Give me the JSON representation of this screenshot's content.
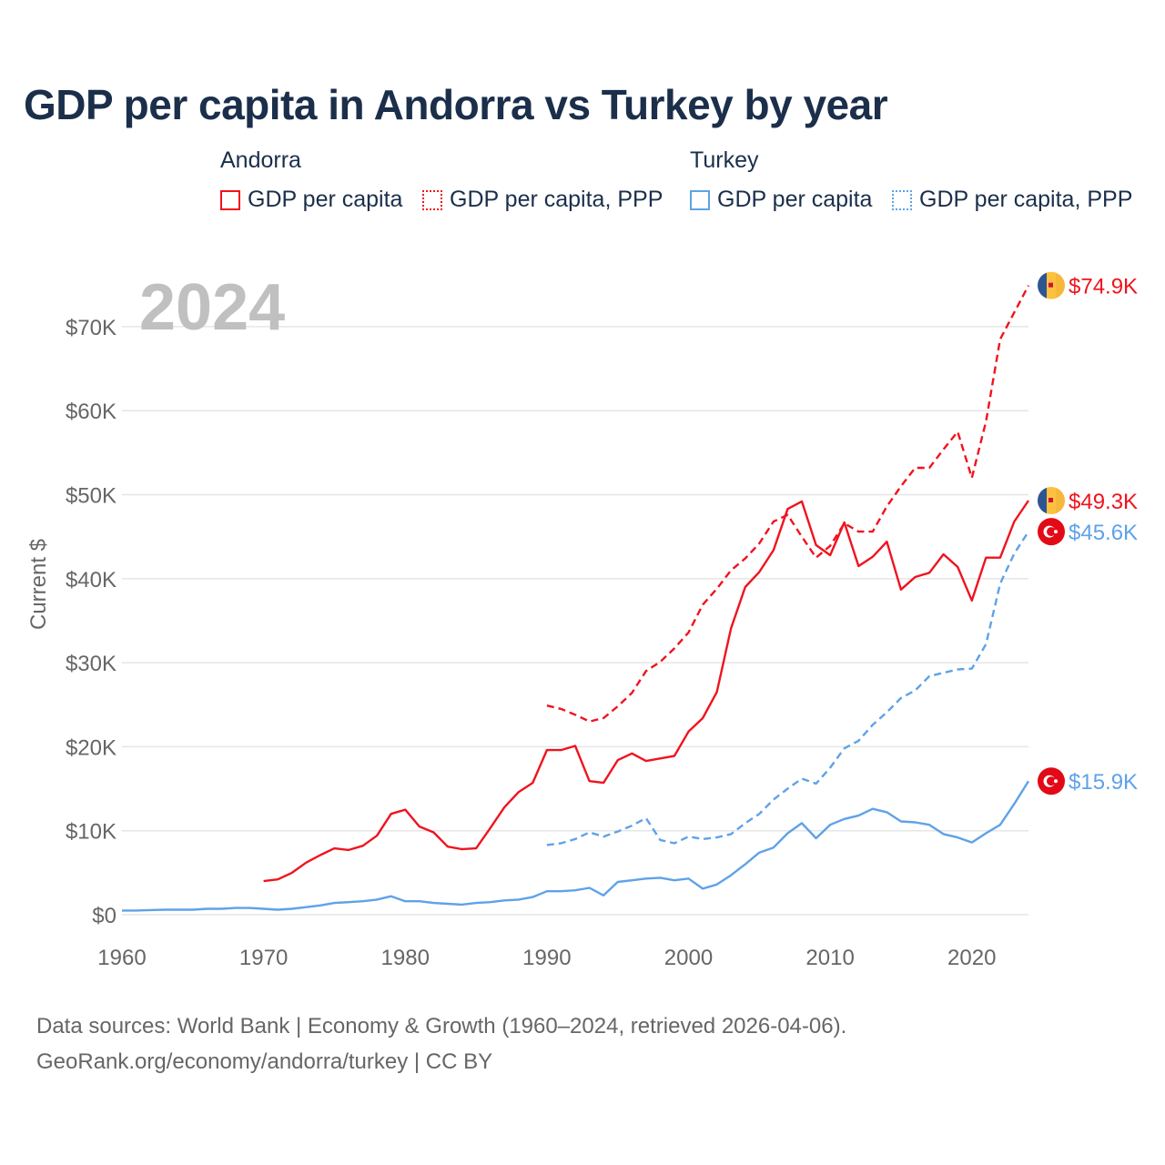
{
  "title": "GDP per capita in Andorra vs Turkey by year",
  "legend": {
    "groups": [
      {
        "name": "Andorra",
        "items": [
          "GDP per capita",
          "GDP per capita, PPP"
        ]
      },
      {
        "name": "Turkey",
        "items": [
          "GDP per capita",
          "GDP per capita, PPP"
        ]
      }
    ]
  },
  "source": {
    "line1": "Data sources: World Bank | Economy & Growth (1960–2024, retrieved 2026-04-06).",
    "line2": "GeoRank.org/economy/andorra/turkey | CC BY"
  },
  "colors": {
    "andorra": "#f0131e",
    "turkey": "#5ea2e8",
    "grid": "#e6e6e6",
    "axis_text": "#666666",
    "year_watermark": "#c0c0c0"
  },
  "chart_data": {
    "type": "line",
    "title": "GDP per capita in Andorra vs Turkey by year",
    "year_label": "2024",
    "xlabel": "",
    "ylabel": "Current $",
    "xlim": [
      1960,
      2024
    ],
    "ylim": [
      0,
      75000
    ],
    "x_ticks": [
      1960,
      1970,
      1980,
      1990,
      2000,
      2010,
      2020
    ],
    "y_ticks": [
      0,
      10000,
      20000,
      30000,
      40000,
      50000,
      60000,
      70000
    ],
    "y_tick_labels": [
      "$0",
      "$10K",
      "$20K",
      "$30K",
      "$40K",
      "$50K",
      "$60K",
      "$70K"
    ],
    "grid": true,
    "series": [
      {
        "name": "Andorra GDP per capita",
        "country": "Andorra",
        "style": "solid",
        "color": "#f0131e",
        "start": 1970,
        "end_label": "$49.3K",
        "values": [
          4.0,
          4.2,
          5.0,
          6.2,
          7.1,
          7.9,
          7.7,
          8.2,
          9.4,
          12.0,
          12.5,
          10.5,
          9.8,
          8.1,
          7.8,
          7.9,
          10.3,
          12.8,
          14.6,
          15.7,
          19.6,
          19.6,
          20.1,
          15.9,
          15.7,
          18.4,
          19.2,
          18.3,
          18.6,
          18.9,
          21.8,
          23.4,
          26.5,
          34.1,
          39.0,
          40.8,
          43.4,
          48.3,
          49.2,
          44.0,
          42.8,
          46.7,
          41.5,
          42.6,
          44.4,
          38.7,
          40.2,
          40.7,
          42.9,
          41.4,
          37.4,
          42.5,
          42.5,
          46.8,
          49.3
        ]
      },
      {
        "name": "Andorra GDP per capita, PPP",
        "country": "Andorra",
        "style": "dashed",
        "color": "#f0131e",
        "start": 1990,
        "end_label": "$74.9K",
        "values": [
          24.9,
          24.5,
          23.8,
          23.0,
          23.4,
          24.8,
          26.4,
          29.0,
          30.1,
          31.7,
          33.6,
          36.9,
          38.8,
          41.0,
          42.4,
          44.2,
          46.8,
          47.6,
          45.0,
          42.5,
          43.9,
          46.6,
          45.6,
          45.6,
          48.6,
          51.0,
          53.2,
          53.2,
          55.4,
          57.5,
          52.0,
          58.7,
          68.5,
          71.7,
          74.9
        ]
      },
      {
        "name": "Turkey GDP per capita",
        "country": "Turkey",
        "style": "solid",
        "color": "#5ea2e8",
        "start": 1960,
        "end_label": "$15.9K",
        "values": [
          0.5,
          0.5,
          0.55,
          0.6,
          0.6,
          0.6,
          0.7,
          0.7,
          0.8,
          0.8,
          0.7,
          0.6,
          0.7,
          0.9,
          1.1,
          1.4,
          1.5,
          1.6,
          1.8,
          2.2,
          1.6,
          1.6,
          1.4,
          1.3,
          1.2,
          1.4,
          1.5,
          1.7,
          1.8,
          2.1,
          2.8,
          2.8,
          2.9,
          3.2,
          2.3,
          3.9,
          4.1,
          4.3,
          4.4,
          4.1,
          4.3,
          3.1,
          3.6,
          4.7,
          6.0,
          7.4,
          8.0,
          9.7,
          10.9,
          9.1,
          10.7,
          11.4,
          11.8,
          12.6,
          12.2,
          11.1,
          11.0,
          10.7,
          9.6,
          9.2,
          8.6,
          9.7,
          10.7,
          13.2,
          15.9
        ]
      },
      {
        "name": "Turkey GDP per capita, PPP",
        "country": "Turkey",
        "style": "dashed",
        "color": "#5ea2e8",
        "start": 1990,
        "end_label": "$45.6K",
        "values": [
          8.3,
          8.5,
          9.0,
          9.8,
          9.3,
          9.9,
          10.6,
          11.5,
          8.9,
          8.5,
          9.3,
          9.0,
          9.2,
          9.6,
          10.9,
          12.0,
          13.7,
          15.0,
          16.2,
          15.6,
          17.5,
          19.8,
          20.7,
          22.6,
          24.1,
          25.8,
          26.7,
          28.4,
          28.8,
          29.2,
          29.3,
          32.2,
          39.4,
          43.0,
          45.6
        ]
      }
    ],
    "value_units": "thousands of current US$"
  }
}
